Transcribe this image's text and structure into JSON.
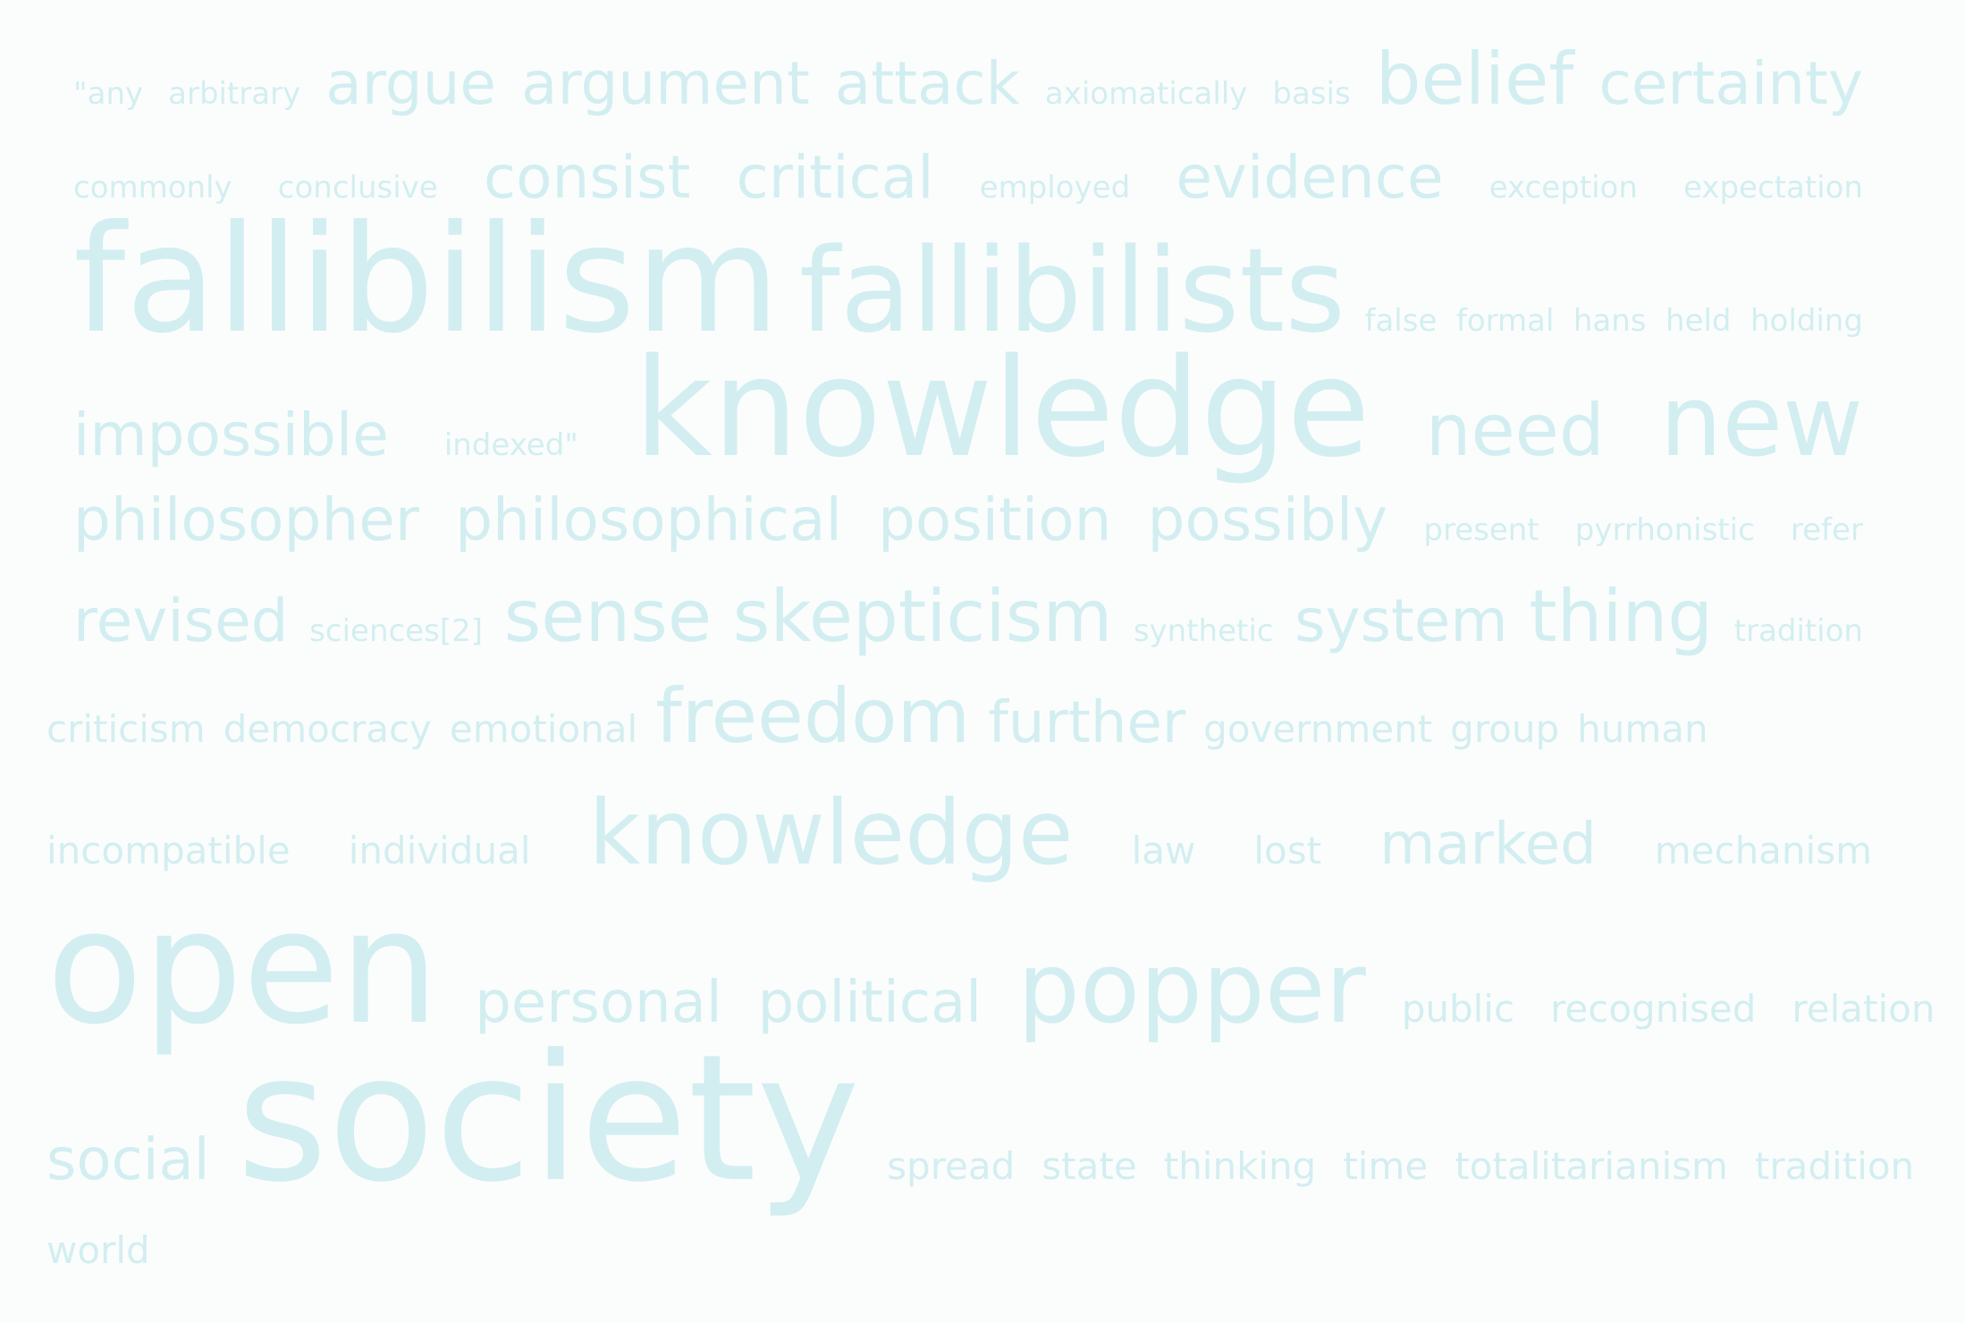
{
  "colors": {
    "background": "#fbfdfd",
    "word": "#d3eef0"
  },
  "cloud_1": {
    "rows": [
      {
        "words": [
          {
            "text": "\"any",
            "size": 34
          },
          {
            "text": "arbitrary",
            "size": 34
          },
          {
            "text": "argue",
            "size": 66
          },
          {
            "text": "argument",
            "size": 66
          },
          {
            "text": "attack",
            "size": 66
          },
          {
            "text": "axiomatically",
            "size": 34
          },
          {
            "text": "basis",
            "size": 34
          },
          {
            "text": "belief",
            "size": 80
          },
          {
            "text": "certainty",
            "size": 66
          }
        ]
      },
      {
        "words": [
          {
            "text": "commonly",
            "size": 34
          },
          {
            "text": "conclusive",
            "size": 34
          },
          {
            "text": "consist",
            "size": 66
          },
          {
            "text": "critical",
            "size": 66
          },
          {
            "text": "employed",
            "size": 34
          },
          {
            "text": "evidence",
            "size": 66
          },
          {
            "text": "exception",
            "size": 34
          },
          {
            "text": "expectation",
            "size": 34
          }
        ]
      },
      {
        "words": [
          {
            "text": "fallibilism",
            "size": 166
          },
          {
            "text": "fallibilists",
            "size": 130
          },
          {
            "text": "false",
            "size": 34
          },
          {
            "text": "formal",
            "size": 34
          },
          {
            "text": "hans",
            "size": 34
          },
          {
            "text": "held",
            "size": 34
          },
          {
            "text": "holding",
            "size": 34
          }
        ]
      },
      {
        "words": [
          {
            "text": "impossible",
            "size": 66
          },
          {
            "text": "indexed\"",
            "size": 34
          },
          {
            "text": "knowledge",
            "size": 152
          },
          {
            "text": "need",
            "size": 80
          },
          {
            "text": "new",
            "size": 110
          }
        ]
      },
      {
        "words": [
          {
            "text": "philosopher",
            "size": 66
          },
          {
            "text": "philosophical",
            "size": 66
          },
          {
            "text": "position",
            "size": 66
          },
          {
            "text": "possibly",
            "size": 66
          },
          {
            "text": "present",
            "size": 34
          },
          {
            "text": "pyrrhonistic",
            "size": 34
          },
          {
            "text": "refer",
            "size": 34
          }
        ]
      },
      {
        "words": [
          {
            "text": "revised",
            "size": 66
          },
          {
            "text": "sciences[2]",
            "size": 34
          },
          {
            "text": "sense",
            "size": 80
          },
          {
            "text": "skepticism",
            "size": 80
          },
          {
            "text": "synthetic",
            "size": 34
          },
          {
            "text": "system",
            "size": 66
          },
          {
            "text": "thing",
            "size": 80
          },
          {
            "text": "tradition",
            "size": 34
          }
        ]
      }
    ]
  },
  "cloud_2": {
    "rows": [
      {
        "words": [
          {
            "text": "criticism",
            "size": 42
          },
          {
            "text": "democracy",
            "size": 42
          },
          {
            "text": "emotional",
            "size": 42
          },
          {
            "text": "freedom",
            "size": 84
          },
          {
            "text": "further",
            "size": 64
          },
          {
            "text": "government",
            "size": 42
          },
          {
            "text": "group",
            "size": 42
          },
          {
            "text": "human",
            "size": 42
          }
        ]
      },
      {
        "words": [
          {
            "text": "incompatible",
            "size": 42
          },
          {
            "text": "individual",
            "size": 42
          },
          {
            "text": "knowledge",
            "size": 100
          },
          {
            "text": "law",
            "size": 42
          },
          {
            "text": "lost",
            "size": 42
          },
          {
            "text": "marked",
            "size": 64
          },
          {
            "text": "mechanism",
            "size": 42
          }
        ]
      },
      {
        "words": [
          {
            "text": "open",
            "size": 176
          },
          {
            "text": "personal",
            "size": 64
          },
          {
            "text": "political",
            "size": 64
          },
          {
            "text": "popper",
            "size": 110
          },
          {
            "text": "public",
            "size": 42
          },
          {
            "text": "recognised",
            "size": 42
          },
          {
            "text": "relation",
            "size": 42
          }
        ]
      },
      {
        "words": [
          {
            "text": "social",
            "size": 64
          },
          {
            "text": "society",
            "size": 196
          },
          {
            "text": "spread",
            "size": 42
          },
          {
            "text": "state",
            "size": 42
          },
          {
            "text": "thinking",
            "size": 42
          },
          {
            "text": "time",
            "size": 42
          },
          {
            "text": "totalitarianism",
            "size": 42
          },
          {
            "text": "tradition",
            "size": 42
          }
        ]
      },
      {
        "words": [
          {
            "text": "world",
            "size": 42
          }
        ]
      }
    ]
  }
}
